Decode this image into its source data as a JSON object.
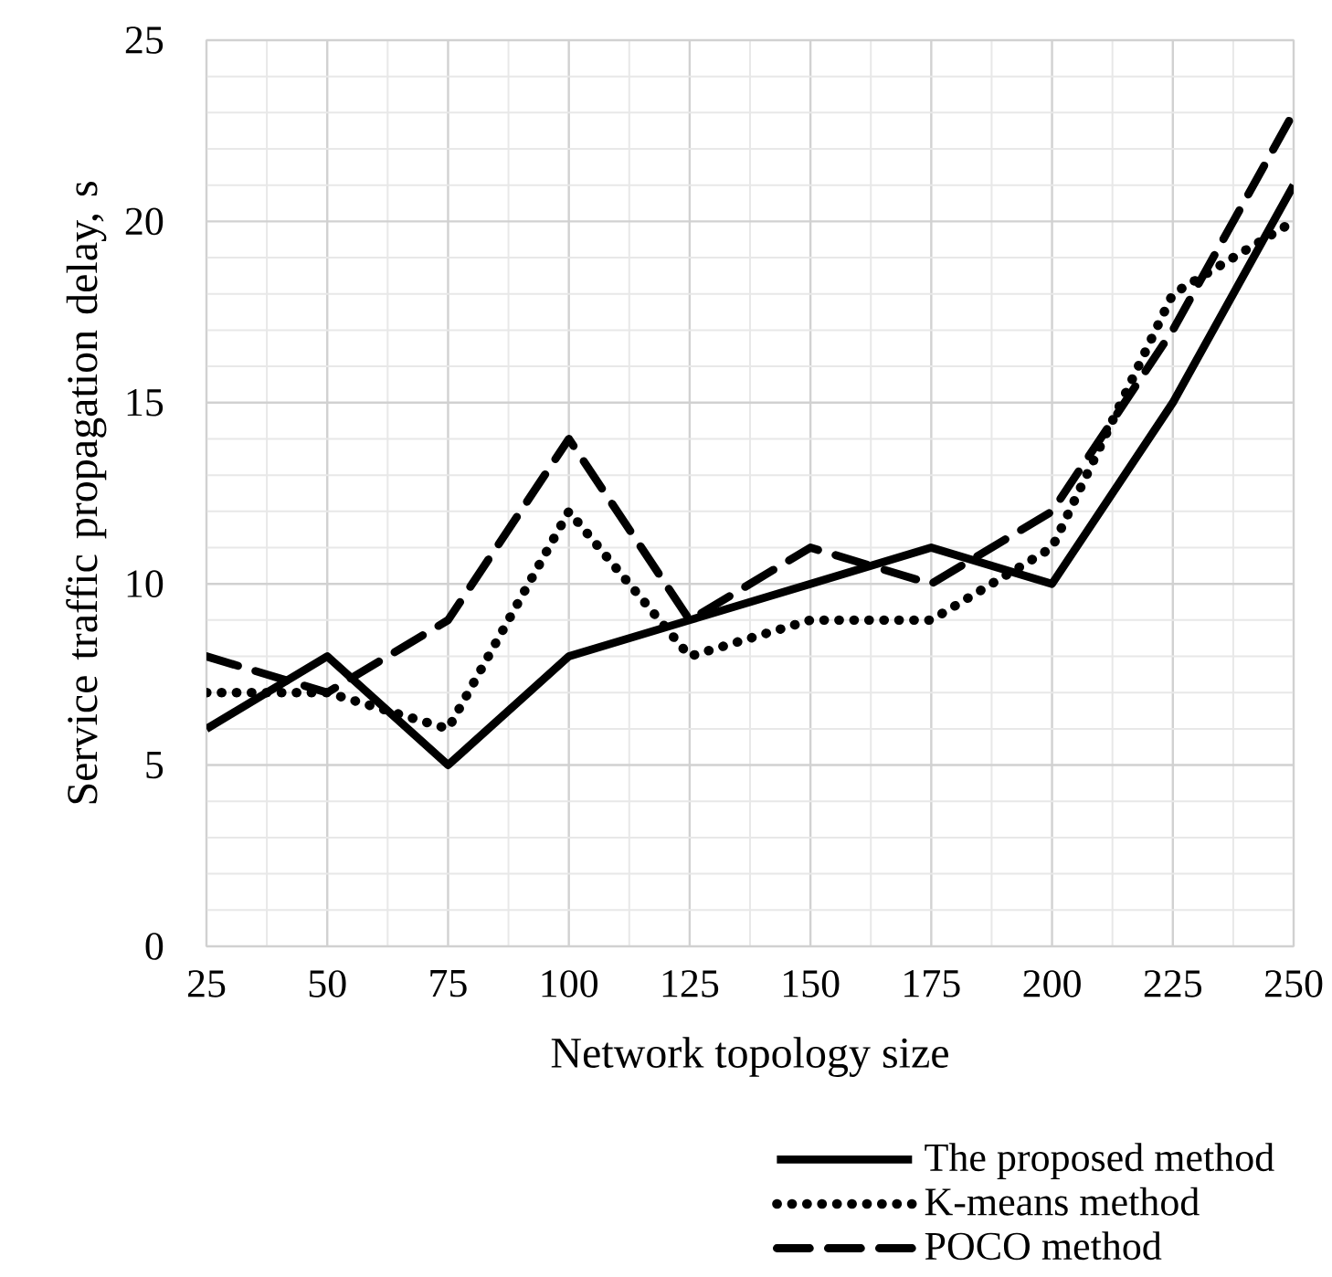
{
  "chart_data": {
    "type": "line",
    "xlabel": "Network topology size",
    "ylabel": "Service traffic propagation delay, s",
    "x": [
      25,
      50,
      75,
      100,
      125,
      150,
      175,
      200,
      225,
      250
    ],
    "xlim": [
      25,
      250
    ],
    "xticks": [
      25,
      50,
      75,
      100,
      125,
      150,
      175,
      200,
      225,
      250
    ],
    "ylim": [
      0,
      25
    ],
    "yticks": [
      0,
      5,
      10,
      15,
      20,
      25
    ],
    "grid": true,
    "legend": "bottom right",
    "series": [
      {
        "name": "The proposed method",
        "color": "#000000",
        "line_style": "solid",
        "values": [
          6,
          8,
          5,
          8,
          9,
          10,
          11,
          10,
          15,
          21
        ]
      },
      {
        "name": "K-means method",
        "color": "#000000",
        "line_style": "dotted",
        "values": [
          7,
          7,
          6,
          12,
          8,
          9,
          9,
          11,
          18,
          20
        ]
      },
      {
        "name": "POCO method",
        "color": "#000000",
        "line_style": "dashed",
        "values": [
          8,
          7,
          9,
          14,
          9,
          11,
          10,
          12,
          17,
          23
        ]
      }
    ]
  }
}
